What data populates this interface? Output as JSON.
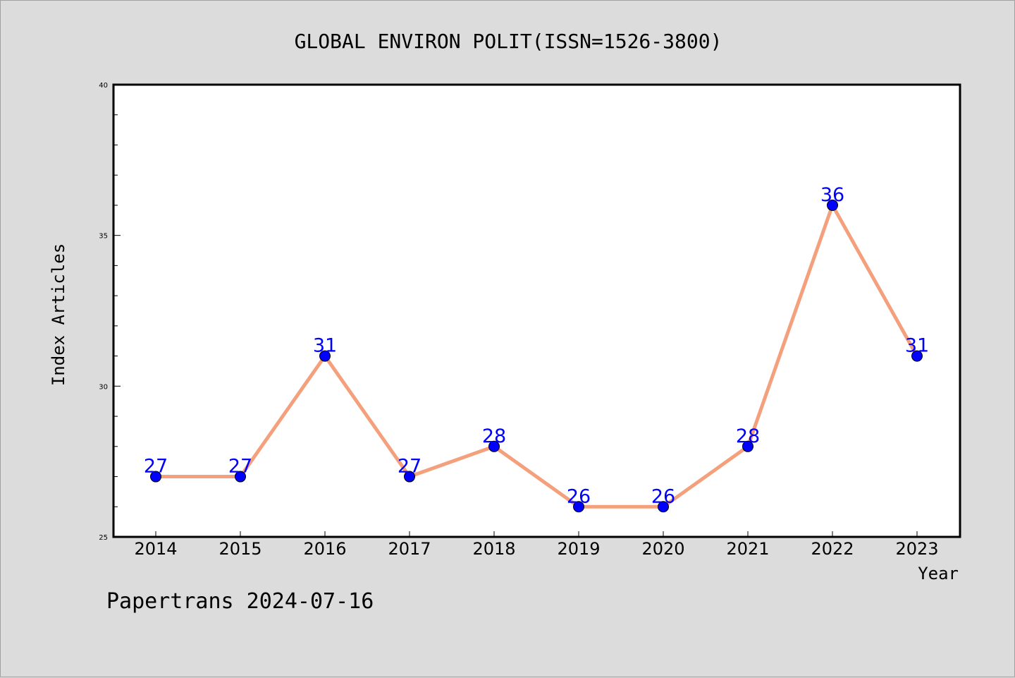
{
  "chart_data": {
    "type": "line",
    "title": "GLOBAL ENVIRON POLIT(ISSN=1526-3800)",
    "xlabel": "Year",
    "ylabel": "Index Articles",
    "categories": [
      "2014",
      "2015",
      "2016",
      "2017",
      "2018",
      "2019",
      "2020",
      "2021",
      "2022",
      "2023"
    ],
    "series": [
      {
        "values": [
          27,
          27,
          31,
          27,
          28,
          26,
          26,
          28,
          36,
          31
        ]
      }
    ],
    "data_labels": [
      "27",
      "27",
      "31",
      "27",
      "28",
      "26",
      "26",
      "28",
      "36",
      "31"
    ],
    "ylim": [
      25,
      40
    ],
    "yticks": [
      25,
      30,
      35,
      40
    ],
    "yticks_minor_step": 1,
    "grid": false,
    "legend": "none",
    "colors": {
      "line": "#f4a07c",
      "marker": "#0000ff",
      "data_label": "#0000ff",
      "background": "#dcdcdc",
      "plot_background": "#ffffff"
    }
  },
  "footer": {
    "text": "Papertrans 2024-07-16"
  }
}
